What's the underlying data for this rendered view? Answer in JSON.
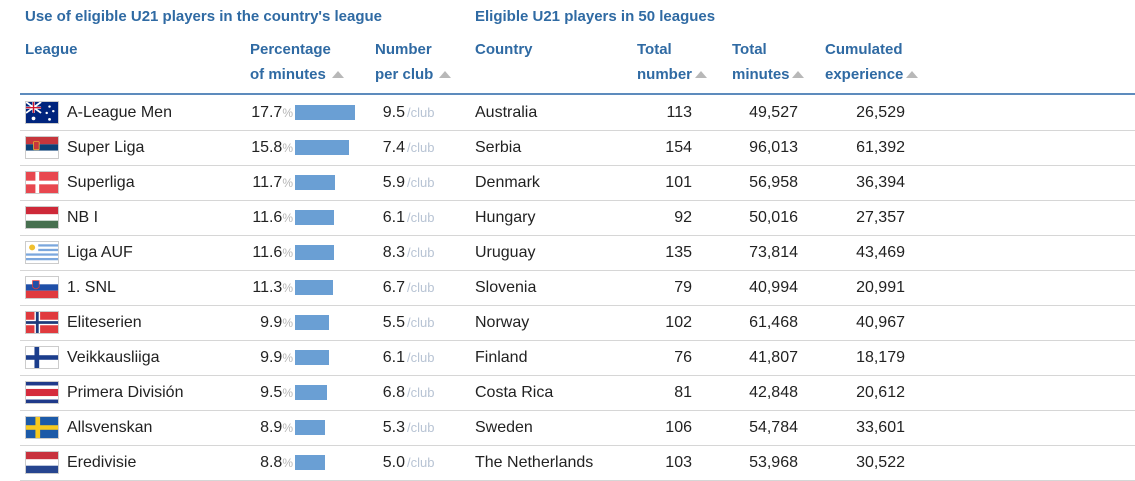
{
  "section_titles": {
    "left": "Use of eligible U21 players in the country's league",
    "right": "Eligible U21 players in 50 leagues"
  },
  "headers": {
    "league": "League",
    "pct_line1": "Percentage",
    "pct_line2": "of minutes",
    "npc_line1": "Number",
    "npc_line2": "per club",
    "country": "Country",
    "total_line1": "Total",
    "total_line2": "number",
    "tmin_line1": "Total",
    "tmin_line2": "minutes",
    "cum_line1": "Cumulated",
    "cum_line2": "experience"
  },
  "labels": {
    "percent_symbol": "%",
    "per_club_unit": "/club"
  },
  "colors": {
    "header_text": "#2f6aa3",
    "bar": "#6a9fd4",
    "rule": "#5d8bbd"
  },
  "rows": [
    {
      "flag": "australia-flag",
      "league": "A-League Men",
      "pct": "17.7",
      "npc": "9.5",
      "country": "Australia",
      "total": "113",
      "minutes": "49,527",
      "experience": "26,529"
    },
    {
      "flag": "serbia-flag",
      "league": "Super Liga",
      "pct": "15.8",
      "npc": "7.4",
      "country": "Serbia",
      "total": "154",
      "minutes": "96,013",
      "experience": "61,392"
    },
    {
      "flag": "denmark-flag",
      "league": "Superliga",
      "pct": "11.7",
      "npc": "5.9",
      "country": "Denmark",
      "total": "101",
      "minutes": "56,958",
      "experience": "36,394"
    },
    {
      "flag": "hungary-flag",
      "league": "NB I",
      "pct": "11.6",
      "npc": "6.1",
      "country": "Hungary",
      "total": "92",
      "minutes": "50,016",
      "experience": "27,357"
    },
    {
      "flag": "uruguay-flag",
      "league": "Liga AUF",
      "pct": "11.6",
      "npc": "8.3",
      "country": "Uruguay",
      "total": "135",
      "minutes": "73,814",
      "experience": "43,469"
    },
    {
      "flag": "slovenia-flag",
      "league": "1. SNL",
      "pct": "11.3",
      "npc": "6.7",
      "country": "Slovenia",
      "total": "79",
      "minutes": "40,994",
      "experience": "20,991"
    },
    {
      "flag": "norway-flag",
      "league": "Eliteserien",
      "pct": "9.9",
      "npc": "5.5",
      "country": "Norway",
      "total": "102",
      "minutes": "61,468",
      "experience": "40,967"
    },
    {
      "flag": "finland-flag",
      "league": "Veikkausliiga",
      "pct": "9.9",
      "npc": "6.1",
      "country": "Finland",
      "total": "76",
      "minutes": "41,807",
      "experience": "18,179"
    },
    {
      "flag": "costa-rica-flag",
      "league": "Primera División",
      "pct": "9.5",
      "npc": "6.8",
      "country": "Costa Rica",
      "total": "81",
      "minutes": "42,848",
      "experience": "20,612"
    },
    {
      "flag": "sweden-flag",
      "league": "Allsvenskan",
      "pct": "8.9",
      "npc": "5.3",
      "country": "Sweden",
      "total": "106",
      "minutes": "54,784",
      "experience": "33,601"
    },
    {
      "flag": "netherlands-flag",
      "league": "Eredivisie",
      "pct": "8.8",
      "npc": "5.0",
      "country": "The Netherlands",
      "total": "103",
      "minutes": "53,968",
      "experience": "30,522"
    }
  ]
}
